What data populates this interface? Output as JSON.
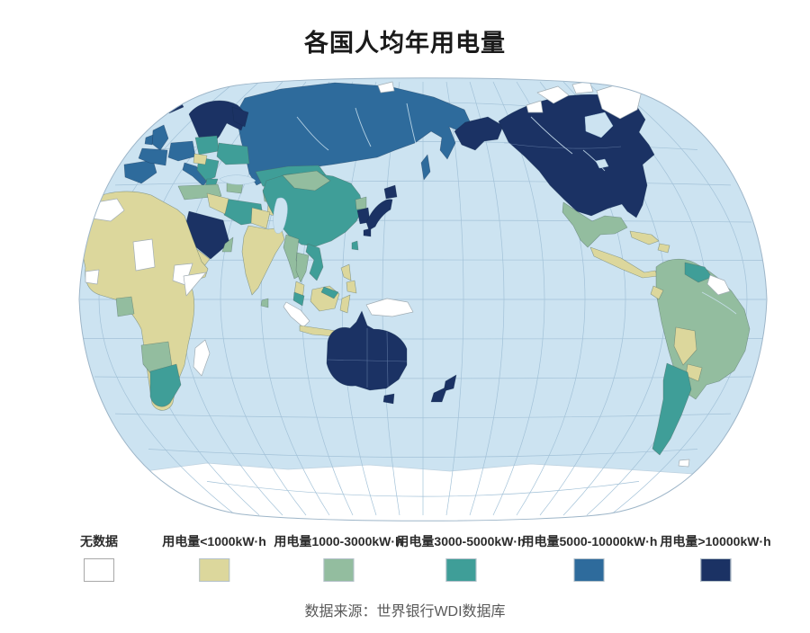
{
  "title": "各国人均年用电量",
  "source": "数据来源：世界银行WDI数据库",
  "map": {
    "ocean_color": "#cce3f1",
    "graticule_color": "#a3c2d8",
    "border_color": "#9db5c8",
    "no_data_color": "#ffffff"
  },
  "legend": {
    "items": [
      {
        "label": "无数据",
        "color": "#ffffff"
      },
      {
        "label": "用电量<1000kW·h",
        "color": "#dcd79c"
      },
      {
        "label": "用电量1000-3000kW·h",
        "color": "#93bd9f"
      },
      {
        "label": "用电量3000-5000kW·h",
        "color": "#3f9e98"
      },
      {
        "label": "用电量5000-10000kW·h",
        "color": "#2e6b9c"
      },
      {
        "label": "用电量>10000kW·h",
        "color": "#1b3264"
      }
    ]
  },
  "chart_data": {
    "type": "heatmap",
    "subtype": "choropleth-world-map",
    "title": "各国人均年用电量",
    "unit": "kW·h",
    "legend_position": "bottom",
    "projection": "winkel-tripel, pacific-centered",
    "categories": [
      {
        "label": "无数据",
        "color": "#ffffff",
        "range": null
      },
      {
        "label": "用电量<1000kW·h",
        "color": "#dcd79c",
        "range": [
          0,
          1000
        ]
      },
      {
        "label": "用电量1000-3000kW·h",
        "color": "#93bd9f",
        "range": [
          1000,
          3000
        ]
      },
      {
        "label": "用电量3000-5000kW·h",
        "color": "#3f9e98",
        "range": [
          3000,
          5000
        ]
      },
      {
        "label": "用电量5000-10000kW·h",
        "color": "#2e6b9c",
        "range": [
          5000,
          10000
        ]
      },
      {
        "label": "用电量>10000kW·h",
        "color": "#1b3264",
        "range": [
          10000,
          null
        ]
      }
    ],
    "regions": [
      {
        "name": "加拿大",
        "category": "用电量>10000kW·h"
      },
      {
        "name": "美国",
        "category": "用电量>10000kW·h"
      },
      {
        "name": "阿拉斯加",
        "category": "用电量>10000kW·h"
      },
      {
        "name": "格陵兰",
        "category": "无数据"
      },
      {
        "name": "冰岛",
        "category": "用电量>10000kW·h"
      },
      {
        "name": "挪威/瑞典/芬兰",
        "category": "用电量>10000kW·h"
      },
      {
        "name": "英国/法国/德国/西班牙/意大利",
        "category": "用电量5000-10000kW·h"
      },
      {
        "name": "东欧(波兰/乌克兰等)",
        "category": "用电量3000-5000kW·h"
      },
      {
        "name": "俄罗斯",
        "category": "用电量5000-10000kW·h"
      },
      {
        "name": "哈萨克斯坦",
        "category": "用电量3000-5000kW·h"
      },
      {
        "name": "中国",
        "category": "用电量3000-5000kW·h"
      },
      {
        "name": "蒙古",
        "category": "用电量1000-3000kW·h"
      },
      {
        "name": "日本",
        "category": "用电量>10000kW·h"
      },
      {
        "name": "韩国",
        "category": "用电量>10000kW·h"
      },
      {
        "name": "印度",
        "category": "用电量<1000kW·h"
      },
      {
        "name": "东南亚大部",
        "category": "用电量1000-3000kW·h"
      },
      {
        "name": "马来西亚",
        "category": "用电量3000-5000kW·h"
      },
      {
        "name": "越南",
        "category": "用电量3000-5000kW·h"
      },
      {
        "name": "印度尼西亚/菲律宾",
        "category": "用电量<1000kW·h"
      },
      {
        "name": "沙特阿拉伯",
        "category": "用电量>10000kW·h"
      },
      {
        "name": "伊朗",
        "category": "用电量3000-5000kW·h"
      },
      {
        "name": "土耳其",
        "category": "用电量1000-3000kW·h"
      },
      {
        "name": "非洲大部",
        "category": "用电量<1000kW·h"
      },
      {
        "name": "南非",
        "category": "用电量3000-5000kW·h"
      },
      {
        "name": "纳米比亚/博茨瓦纳/加蓬",
        "category": "用电量1000-3000kW·h"
      },
      {
        "name": "马达加斯加",
        "category": "无数据"
      },
      {
        "name": "澳大利亚",
        "category": "用电量>10000kW·h"
      },
      {
        "name": "新西兰",
        "category": "用电量>10000kW·h"
      },
      {
        "name": "巴布亚新几内亚",
        "category": "无数据"
      },
      {
        "name": "墨西哥",
        "category": "用电量1000-3000kW·h"
      },
      {
        "name": "中美洲",
        "category": "用电量<1000kW·h"
      },
      {
        "name": "巴西/秘鲁/哥伦比亚",
        "category": "用电量1000-3000kW·h"
      },
      {
        "name": "委内瑞拉",
        "category": "用电量3000-5000kW·h"
      },
      {
        "name": "圭亚那/苏里南",
        "category": "无数据"
      },
      {
        "name": "玻利维亚/巴拉圭",
        "category": "用电量<1000kW·h"
      },
      {
        "name": "智利/阿根廷",
        "category": "用电量3000-5000kW·h"
      },
      {
        "name": "南极洲",
        "category": "无数据"
      }
    ],
    "source": "数据来源：世界银行WDI数据库"
  }
}
